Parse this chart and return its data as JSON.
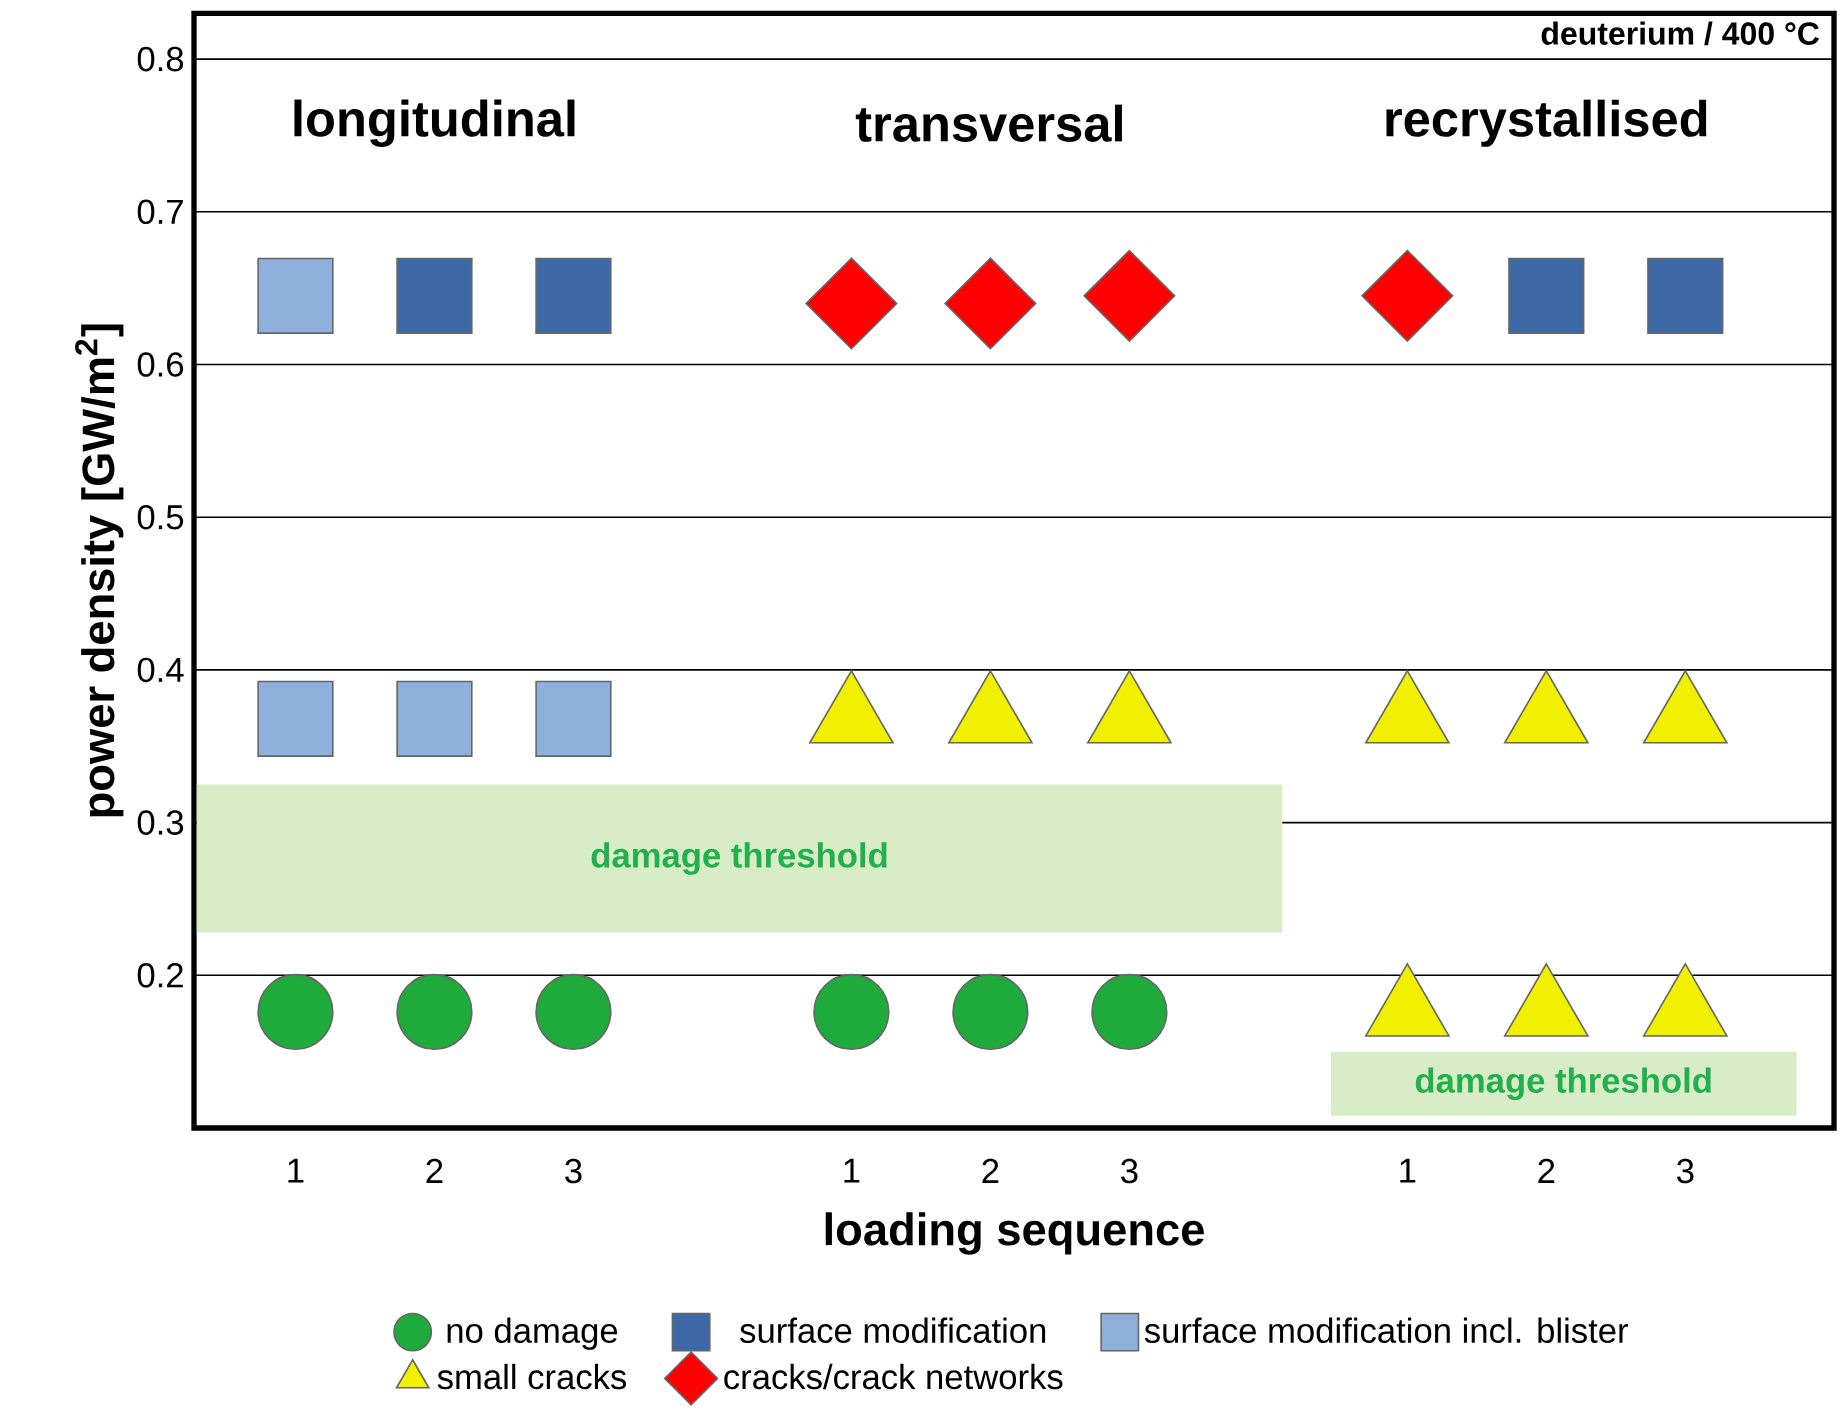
{
  "chart_data": {
    "type": "scatter",
    "xlabel": "loading sequence",
    "ylabel": "power density [GW/m$^{2}$]",
    "categories": [
      "1",
      "2",
      "3",
      null,
      "1",
      "2",
      "3",
      null,
      "1",
      "2",
      "3"
    ],
    "series": [
      {
        "name": "no damage",
        "color": "#1faa3c",
        "marker": "circle",
        "values": [
          0.176,
          0.176,
          0.176,
          null,
          0.176,
          0.176,
          0.176,
          null,
          null,
          null,
          null
        ]
      },
      {
        "name": "surface modification",
        "color": "#3d6aa6",
        "marker": "square",
        "values": [
          null,
          0.645,
          0.645,
          null,
          null,
          null,
          null,
          null,
          null,
          0.645,
          0.645
        ]
      },
      {
        "name": "surface modification incl. blister",
        "color": "#8fb0db",
        "marker": "square",
        "values": [
          0.645,
          null,
          null,
          null,
          null,
          null,
          null,
          null,
          null,
          null,
          null
        ]
      },
      {
        "color": "#8fb0db",
        "marker": "square",
        "values": [
          0.368,
          0.368,
          0.368,
          null,
          null,
          null,
          null,
          null,
          null,
          null,
          null
        ]
      },
      {
        "name": "small cracks",
        "color": "#f0f000",
        "marker": "triangle",
        "values": [
          null,
          null,
          null,
          null,
          0.368,
          0.368,
          0.368,
          null,
          0.368,
          0.368,
          0.368
        ]
      },
      {
        "color": "#f0f000",
        "marker": "triangle",
        "values": [
          null,
          null,
          null,
          null,
          null,
          null,
          null,
          null,
          0.176,
          0.176,
          0.176
        ]
      },
      {
        "name": "cracks/crack networks",
        "color": "#ff0000",
        "marker": "diamond",
        "values": [
          null,
          null,
          null,
          null,
          0.64,
          0.64,
          0.645,
          null,
          0.645,
          null,
          null
        ]
      }
    ],
    "ylim": [
      0.1,
      0.83
    ],
    "yticks": [
      0.2,
      0.3,
      0.4,
      0.5,
      0.6,
      0.7,
      0.8
    ],
    "grid": "y",
    "legend": "bottom",
    "bands": [
      {
        "axis": "y",
        "from": 0.228,
        "to": 0.325,
        "label": "damage threshold",
        "color": "#d8ecc8"
      },
      {
        "axis": "y",
        "from": 0.108,
        "to": 0.15,
        "label": "damage threshold",
        "color": "#d8ecc8"
      }
    ],
    "annotations": [
      "longitudinal",
      "transversal",
      "recrystallised",
      "deuterium / 400 °C"
    ]
  }
}
